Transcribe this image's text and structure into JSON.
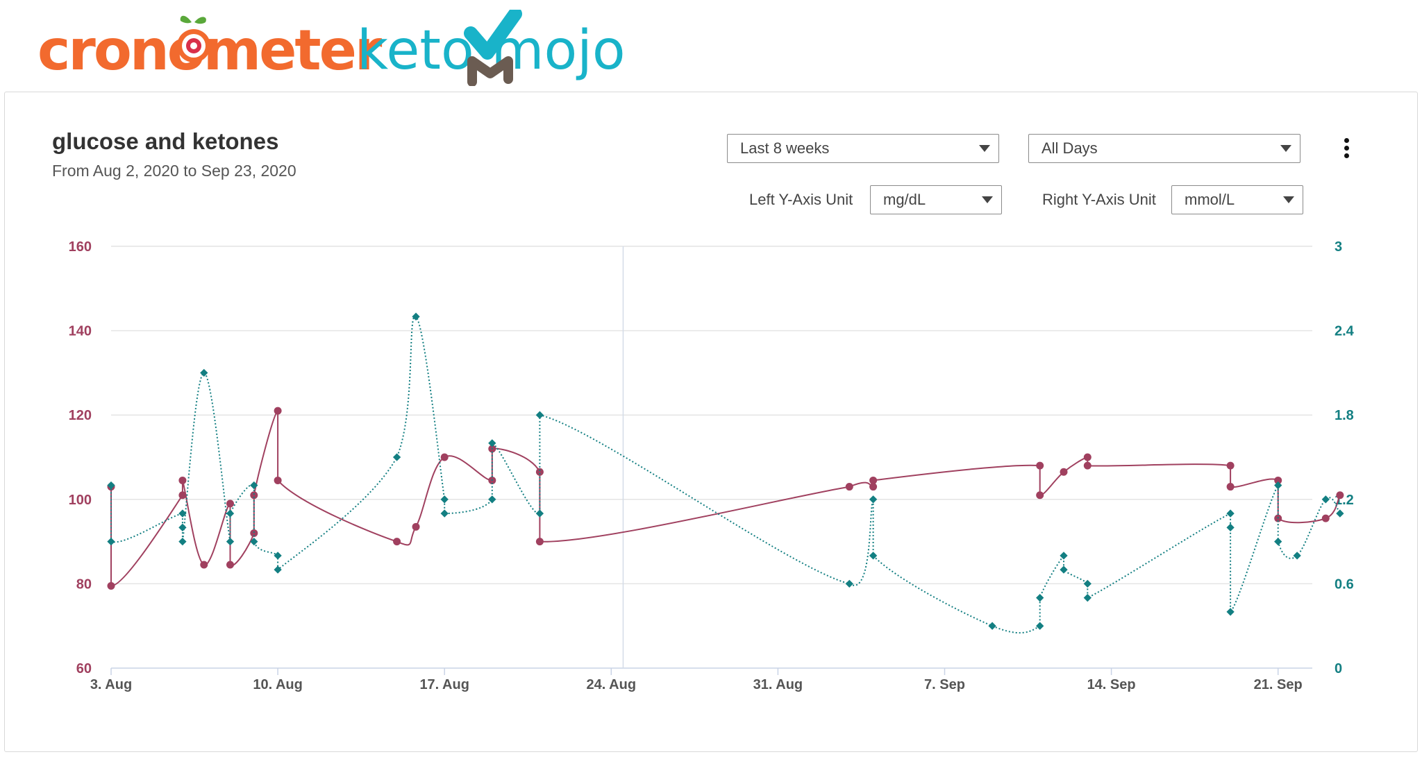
{
  "logos": {
    "cronometer": "cronometer",
    "ketomojo": "keto mojo"
  },
  "header": {
    "title": "glucose and ketones",
    "subtitle": "From Aug 2, 2020 to Sep 23, 2020"
  },
  "controls": {
    "range": "Last 8 weeks",
    "days": "All Days",
    "left_unit_label": "Left Y-Axis Unit",
    "left_unit": "mg/dL",
    "right_unit_label": "Right Y-Axis Unit",
    "right_unit": "mmol/L"
  },
  "colors": {
    "glucose": "#a0405f",
    "ketones": "#137f82",
    "grid": "#e4e4e4",
    "cronometer": "#f26a2e",
    "ketomojo": "#19b3c9"
  },
  "chart_data": {
    "type": "line",
    "title": "glucose and ketones",
    "x_ticks": [
      "3. Aug",
      "10. Aug",
      "17. Aug",
      "24. Aug",
      "31. Aug",
      "7. Sep",
      "14. Sep",
      "21. Sep"
    ],
    "x_tick_days": [
      1,
      8,
      15,
      22,
      29,
      36,
      43,
      50
    ],
    "xlim_days": [
      1,
      51.5
    ],
    "x_day_origin": "2. Aug",
    "left_axis": {
      "unit": "mg/dL",
      "ylim": [
        60,
        160
      ],
      "ticks": [
        60,
        80,
        100,
        120,
        140,
        160
      ]
    },
    "right_axis": {
      "unit": "mmol/L",
      "ylim": [
        0,
        3
      ],
      "ticks": [
        "0",
        "0.6",
        "1.2",
        "1.8",
        "2.4",
        "3"
      ]
    },
    "grid": true,
    "crosshair_day": 22.5,
    "series": [
      {
        "name": "glucose",
        "axis": "left",
        "style": "solid",
        "points": [
          [
            1.0,
            103
          ],
          [
            1.0,
            79.5
          ],
          [
            4.0,
            101
          ],
          [
            4.0,
            104.5
          ],
          [
            4.9,
            84.5
          ],
          [
            6.0,
            99
          ],
          [
            6.0,
            84.5
          ],
          [
            7.0,
            92
          ],
          [
            7.0,
            101
          ],
          [
            8.0,
            121
          ],
          [
            8.0,
            104.5
          ],
          [
            13.0,
            90
          ],
          [
            13.8,
            93.5
          ],
          [
            15.0,
            110
          ],
          [
            17.0,
            104.5
          ],
          [
            17.0,
            112
          ],
          [
            19.0,
            106.5
          ],
          [
            19.0,
            90
          ],
          [
            32.0,
            103
          ],
          [
            33.0,
            103
          ],
          [
            33.0,
            104.5
          ],
          [
            40.0,
            108
          ],
          [
            40.0,
            101
          ],
          [
            41.0,
            106.5
          ],
          [
            42.0,
            110
          ],
          [
            42.0,
            108
          ],
          [
            48.0,
            108
          ],
          [
            48.0,
            103
          ],
          [
            50.0,
            104.5
          ],
          [
            50.0,
            95.5
          ],
          [
            52.0,
            95.5
          ],
          [
            52.6,
            101
          ]
        ]
      },
      {
        "name": "ketones",
        "axis": "right",
        "style": "dotted",
        "points": [
          [
            1.0,
            1.3
          ],
          [
            1.0,
            0.9
          ],
          [
            4.0,
            1.1
          ],
          [
            4.0,
            1.0
          ],
          [
            4.0,
            0.9
          ],
          [
            4.9,
            2.1
          ],
          [
            6.0,
            0.9
          ],
          [
            6.0,
            1.1
          ],
          [
            7.0,
            1.3
          ],
          [
            7.0,
            0.9
          ],
          [
            8.0,
            0.8
          ],
          [
            8.0,
            0.7
          ],
          [
            13.0,
            1.5
          ],
          [
            13.8,
            2.5
          ],
          [
            15.0,
            1.2
          ],
          [
            15.0,
            1.1
          ],
          [
            17.0,
            1.2
          ],
          [
            17.0,
            1.6
          ],
          [
            19.0,
            1.1
          ],
          [
            19.0,
            1.8
          ],
          [
            32.0,
            0.6
          ],
          [
            33.0,
            1.2
          ],
          [
            33.0,
            0.8
          ],
          [
            38.0,
            0.3
          ],
          [
            40.0,
            0.3
          ],
          [
            40.0,
            0.5
          ],
          [
            41.0,
            0.8
          ],
          [
            41.0,
            0.7
          ],
          [
            42.0,
            0.6
          ],
          [
            42.0,
            0.5
          ],
          [
            48.0,
            1.1
          ],
          [
            48.0,
            1.0
          ],
          [
            48.0,
            0.4
          ],
          [
            50.0,
            1.3
          ],
          [
            50.0,
            0.9
          ],
          [
            50.8,
            0.8
          ],
          [
            52.0,
            1.2
          ],
          [
            52.6,
            1.1
          ]
        ]
      }
    ]
  }
}
